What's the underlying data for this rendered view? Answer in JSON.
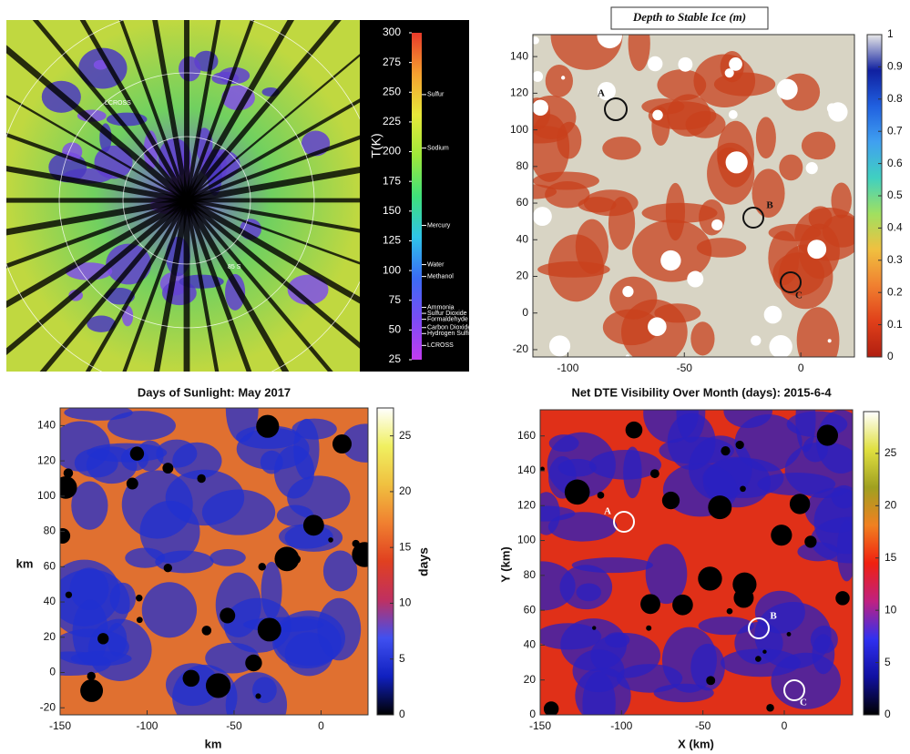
{
  "chart_data": [
    {
      "type": "heatmap",
      "colormap": [
        "#c23cf0",
        "#7a4cf5",
        "#3a6cf5",
        "#2fc4e8",
        "#3fe07a",
        "#9fe83a",
        "#e8e83a",
        "#f5a030",
        "#e83a2a"
      ],
      "colorbar": {
        "label": "T(K)",
        "lim": [
          25,
          300
        ],
        "ticks": [
          25,
          50,
          75,
          100,
          125,
          150,
          175,
          200,
          225,
          250,
          275,
          300
        ],
        "annotations": [
          {
            "label": "Sulfur",
            "value": 248
          },
          {
            "label": "Sodium",
            "value": 203
          },
          {
            "label": "Mercury",
            "value": 138
          },
          {
            "label": "Water",
            "value": 105
          },
          {
            "label": "Methanol",
            "value": 95
          },
          {
            "label": "Ammonia",
            "value": 69
          },
          {
            "label": "Sulfur Dioxide",
            "value": 64
          },
          {
            "label": "Formaldehyde",
            "value": 59
          },
          {
            "label": "Carbon Dioxide",
            "value": 52
          },
          {
            "label": "Hydrogen Sulfide",
            "value": 47
          },
          {
            "label": "LCROSS",
            "value": 37
          }
        ]
      },
      "map_labels": [
        "LCROSS",
        "85 S"
      ]
    },
    {
      "type": "heatmap",
      "title": "Depth to Stable Ice (m)",
      "colormap": [
        "#b01e10",
        "#e0401a",
        "#f08030",
        "#f0c040",
        "#a0e060",
        "#40d0c0",
        "#40a0f0",
        "#2060e0",
        "#1020a0",
        "#e8e8e8"
      ],
      "xlim": [
        -115,
        23
      ],
      "ylim": [
        -24,
        152
      ],
      "xticks": [
        -100,
        -50,
        0
      ],
      "yticks": [
        -20,
        0,
        20,
        40,
        60,
        80,
        100,
        120,
        140
      ],
      "colorbar": {
        "lim": [
          0,
          1
        ],
        "ticks": [
          0,
          0.1,
          0.2,
          0.3,
          0.4,
          0.5,
          0.6,
          0.7,
          0.8,
          0.9,
          1
        ]
      },
      "annotations": [
        "A",
        "B",
        "C"
      ]
    },
    {
      "type": "heatmap",
      "title": "Days of Sunlight: May 2017",
      "xlabel": "km",
      "ylabel": "km",
      "colormap": [
        "#000000",
        "#1020c0",
        "#4050f0",
        "#c03060",
        "#e04020",
        "#f08030",
        "#f0c040",
        "#f0f060",
        "#ffffff"
      ],
      "xlim": [
        -150,
        27
      ],
      "ylim": [
        -24,
        150
      ],
      "xticks": [
        -150,
        -100,
        -50,
        0
      ],
      "yticks": [
        -20,
        0,
        20,
        40,
        60,
        80,
        100,
        120,
        140
      ],
      "colorbar": {
        "label": "days",
        "lim": [
          0,
          27.5
        ],
        "ticks": [
          0,
          5,
          10,
          15,
          20,
          25
        ]
      }
    },
    {
      "type": "heatmap",
      "title": "Net DTE Visibility Over Month (days): 2015-6-4",
      "xlabel": "X (km)",
      "ylabel": "Y (km)",
      "colormap": [
        "#000000",
        "#1010a0",
        "#3030f0",
        "#c02080",
        "#f02010",
        "#f08020",
        "#a0a020",
        "#e0e040",
        "#ffffff"
      ],
      "xlim": [
        -150,
        42
      ],
      "ylim": [
        0,
        175
      ],
      "xticks": [
        -150,
        -100,
        -50,
        0
      ],
      "yticks": [
        0,
        20,
        40,
        60,
        80,
        100,
        120,
        140,
        160
      ],
      "colorbar": {
        "lim": [
          0,
          29
        ],
        "ticks": [
          0,
          5,
          10,
          15,
          20,
          25
        ]
      },
      "annotations": [
        "A",
        "B",
        "C"
      ]
    }
  ]
}
